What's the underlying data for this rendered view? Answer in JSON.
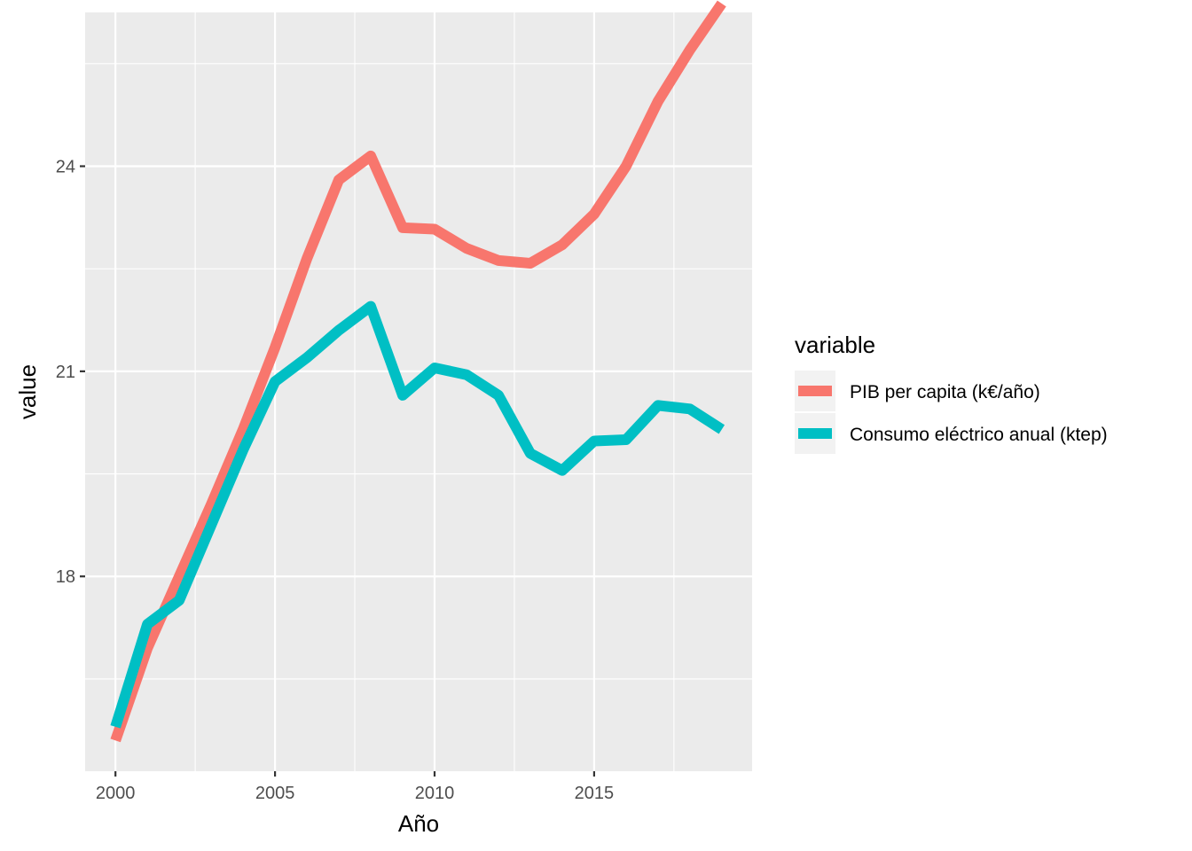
{
  "chart_data": {
    "type": "line",
    "xlabel": "Año",
    "ylabel": "value",
    "x": [
      2000,
      2001,
      2002,
      2003,
      2004,
      2005,
      2006,
      2007,
      2008,
      2009,
      2010,
      2011,
      2012,
      2013,
      2014,
      2015,
      2016,
      2017,
      2018,
      2019
    ],
    "xlim": [
      1999.05,
      2019.95
    ],
    "ylim": [
      15.15,
      26.25
    ],
    "x_ticks": [
      2000,
      2005,
      2010,
      2015
    ],
    "x_tick_labels": [
      "2000",
      "2005",
      "2010",
      "2015"
    ],
    "y_ticks": [
      18,
      21,
      24
    ],
    "y_tick_labels": [
      "18",
      "21",
      "24"
    ],
    "grid": true,
    "legend": {
      "title": "variable",
      "position": "right"
    },
    "series": [
      {
        "name": "PIB per capita (k€/año)",
        "color": "#F8766D",
        "values": [
          15.6,
          16.95,
          18.0,
          19.05,
          20.15,
          21.35,
          22.65,
          23.8,
          24.15,
          23.1,
          23.08,
          22.8,
          22.62,
          22.58,
          22.85,
          23.3,
          24.0,
          24.95,
          25.7,
          26.38
        ]
      },
      {
        "name": "Consumo eléctrico anual (ktep)",
        "color": "#00BFC4",
        "values": [
          15.8,
          17.3,
          17.65,
          18.75,
          19.85,
          20.85,
          21.2,
          21.6,
          21.95,
          20.65,
          21.05,
          20.95,
          20.65,
          19.8,
          19.55,
          19.98,
          20.0,
          20.5,
          20.45,
          20.15
        ]
      }
    ]
  }
}
